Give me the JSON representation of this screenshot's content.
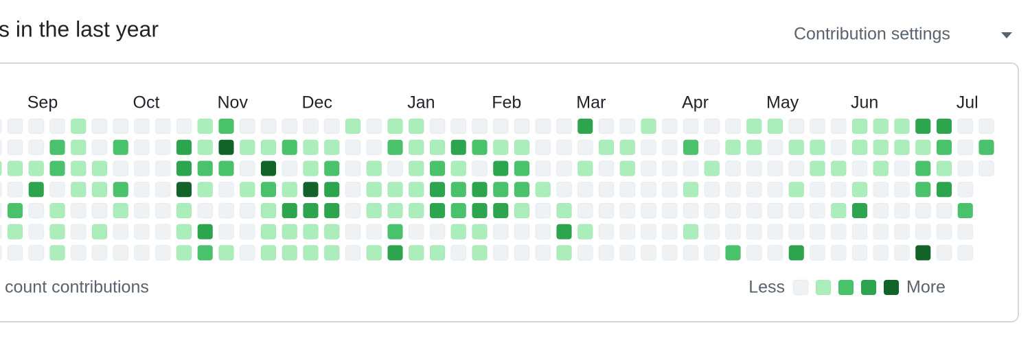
{
  "header": {
    "title": "s in the last year",
    "settings": "Contribution settings"
  },
  "months": [
    {
      "label": "Sep",
      "column": 1
    },
    {
      "label": "Oct",
      "column": 6
    },
    {
      "label": "Nov",
      "column": 10
    },
    {
      "label": "Dec",
      "column": 14
    },
    {
      "label": "Jan",
      "column": 19
    },
    {
      "label": "Feb",
      "column": 23
    },
    {
      "label": "Mar",
      "column": 27
    },
    {
      "label": "Apr",
      "column": 32
    },
    {
      "label": "May",
      "column": 36
    },
    {
      "label": "Jun",
      "column": 40
    },
    {
      "label": "Jul",
      "column": 45
    }
  ],
  "level_colors": [
    "#eff2f5",
    "#aceebb",
    "#4ac26b",
    "#2da44e",
    "#116329"
  ],
  "grid": {
    "first_column": -1,
    "rows": [
      [
        0,
        0,
        0,
        0,
        1,
        0,
        0,
        0,
        0,
        0,
        1,
        2,
        0,
        0,
        0,
        0,
        0,
        1,
        0,
        1,
        1,
        0,
        0,
        0,
        0,
        0,
        0,
        0,
        3,
        0,
        0,
        1,
        0,
        0,
        0,
        0,
        1,
        1,
        0,
        0,
        0,
        1,
        1,
        1,
        3,
        3,
        0,
        0
      ],
      [
        0,
        0,
        0,
        2,
        1,
        0,
        2,
        0,
        0,
        3,
        1,
        4,
        1,
        1,
        2,
        1,
        1,
        0,
        0,
        2,
        1,
        1,
        3,
        2,
        1,
        1,
        0,
        0,
        0,
        1,
        1,
        0,
        0,
        2,
        0,
        1,
        1,
        0,
        1,
        1,
        0,
        1,
        1,
        1,
        1,
        2,
        0,
        2
      ],
      [
        1,
        1,
        1,
        2,
        1,
        1,
        0,
        0,
        0,
        3,
        2,
        2,
        0,
        4,
        0,
        1,
        2,
        0,
        1,
        0,
        1,
        2,
        1,
        0,
        3,
        2,
        0,
        0,
        1,
        0,
        1,
        0,
        0,
        0,
        1,
        0,
        0,
        0,
        0,
        1,
        1,
        0,
        1,
        0,
        2,
        1,
        0,
        0
      ],
      [
        0,
        0,
        3,
        0,
        1,
        1,
        2,
        0,
        0,
        4,
        1,
        0,
        1,
        2,
        1,
        4,
        3,
        0,
        1,
        1,
        1,
        3,
        2,
        3,
        2,
        2,
        1,
        0,
        0,
        0,
        0,
        0,
        0,
        1,
        0,
        0,
        0,
        0,
        1,
        0,
        0,
        1,
        0,
        0,
        2,
        3,
        0,
        null
      ],
      [
        0,
        2,
        0,
        1,
        0,
        0,
        1,
        0,
        0,
        1,
        0,
        0,
        0,
        1,
        3,
        3,
        3,
        0,
        1,
        1,
        1,
        3,
        2,
        3,
        3,
        1,
        0,
        1,
        0,
        0,
        0,
        0,
        0,
        0,
        0,
        0,
        0,
        0,
        0,
        0,
        1,
        3,
        0,
        0,
        0,
        0,
        2,
        null
      ],
      [
        0,
        1,
        0,
        1,
        0,
        1,
        0,
        0,
        0,
        1,
        3,
        0,
        0,
        1,
        1,
        1,
        1,
        0,
        0,
        2,
        0,
        0,
        1,
        1,
        0,
        0,
        0,
        3,
        1,
        0,
        0,
        0,
        0,
        1,
        0,
        0,
        0,
        0,
        0,
        0,
        0,
        0,
        0,
        0,
        0,
        0,
        0,
        null
      ],
      [
        0,
        0,
        0,
        1,
        0,
        0,
        0,
        0,
        0,
        1,
        2,
        1,
        0,
        1,
        1,
        1,
        1,
        0,
        1,
        3,
        1,
        1,
        0,
        1,
        0,
        0,
        0,
        1,
        0,
        0,
        0,
        0,
        0,
        0,
        0,
        2,
        0,
        0,
        3,
        0,
        0,
        0,
        0,
        0,
        4,
        0,
        0,
        null
      ]
    ]
  },
  "footer": {
    "note": "count contributions",
    "less": "Less",
    "more": "More",
    "legend_levels": [
      0,
      1,
      2,
      3,
      4
    ]
  }
}
